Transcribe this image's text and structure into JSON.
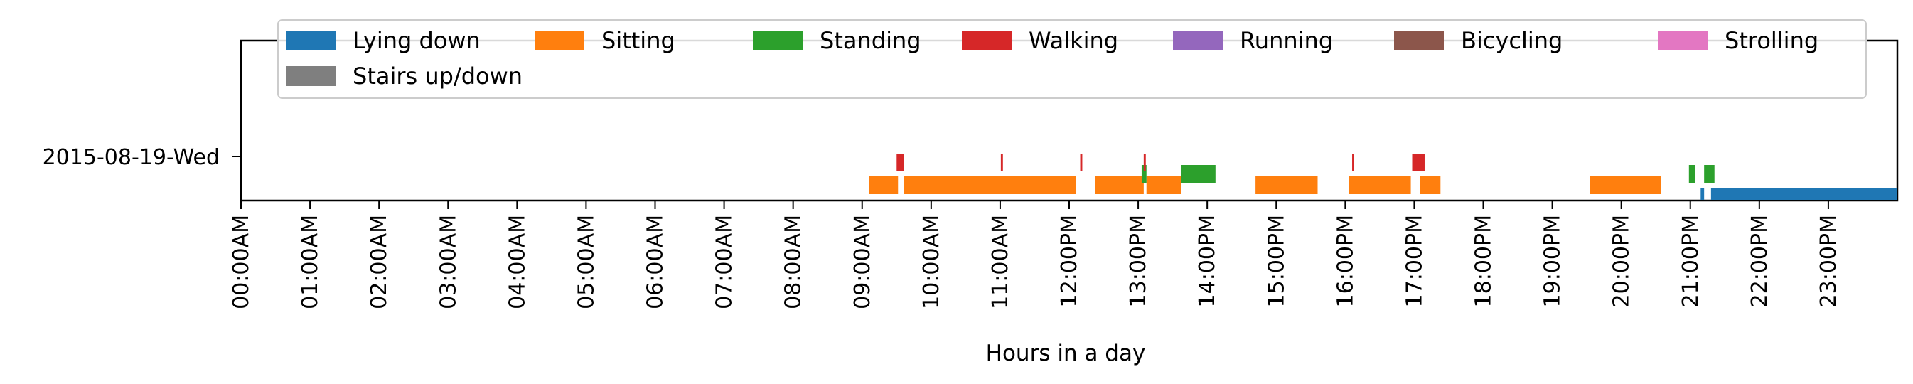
{
  "chart_data": {
    "type": "timeline",
    "xlabel": "Hours in a day",
    "ylabel": "",
    "xlim": [
      0,
      24
    ],
    "x_ticks": [
      "00:00AM",
      "01:00AM",
      "02:00AM",
      "03:00AM",
      "04:00AM",
      "05:00AM",
      "06:00AM",
      "07:00AM",
      "08:00AM",
      "09:00AM",
      "10:00AM",
      "11:00AM",
      "12:00PM",
      "13:00PM",
      "14:00PM",
      "15:00PM",
      "16:00PM",
      "17:00PM",
      "18:00PM",
      "19:00PM",
      "20:00PM",
      "21:00PM",
      "22:00PM",
      "23:00PM"
    ],
    "rows": [
      "2015-08-19-Wed"
    ],
    "legend_location": "upper-center",
    "grid": false,
    "series": [
      {
        "name": "Lying down",
        "color": "#1f77b4",
        "intervals": [
          [
            21.15,
            21.2
          ],
          [
            21.3,
            24.0
          ]
        ]
      },
      {
        "name": "Sitting",
        "color": "#ff7f0e",
        "intervals": [
          [
            9.1,
            9.52
          ],
          [
            9.6,
            12.1
          ],
          [
            12.38,
            13.08
          ],
          [
            13.12,
            13.62
          ],
          [
            14.7,
            15.6
          ],
          [
            16.05,
            16.95
          ],
          [
            17.08,
            17.38
          ],
          [
            19.55,
            20.58
          ]
        ]
      },
      {
        "name": "Standing",
        "color": "#2ca02c",
        "intervals": [
          [
            13.05,
            13.12
          ],
          [
            13.62,
            14.12
          ],
          [
            20.98,
            21.07
          ],
          [
            21.2,
            21.35
          ]
        ]
      },
      {
        "name": "Walking",
        "color": "#d62728",
        "intervals": [
          [
            9.5,
            9.6
          ],
          [
            11.01,
            11.04
          ],
          [
            12.16,
            12.19
          ],
          [
            13.08,
            13.11
          ],
          [
            16.1,
            16.13
          ],
          [
            16.97,
            17.15
          ]
        ]
      },
      {
        "name": "Running",
        "color": "#9467bd",
        "intervals": []
      },
      {
        "name": "Bicycling",
        "color": "#8c564b",
        "intervals": []
      },
      {
        "name": "Strolling",
        "color": "#e377c2",
        "intervals": []
      },
      {
        "name": "Stairs up/down",
        "color": "#7f7f7f",
        "intervals": []
      }
    ]
  }
}
